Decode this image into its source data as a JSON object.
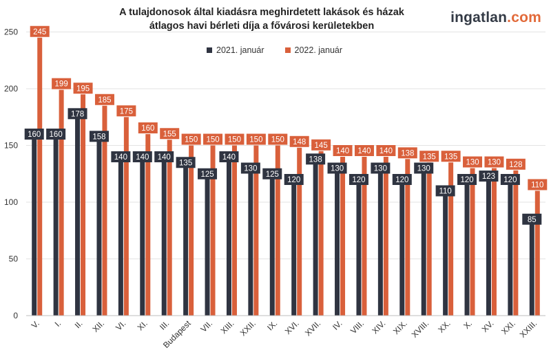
{
  "title_line1": "A tulajdonosok által kiadásra meghirdetett lakások és házak",
  "title_line2": "átlagos havi bérleti díja a fővárosi kerületekben",
  "logo": {
    "part1": "ingatlan",
    "part2": ".com"
  },
  "colors": {
    "series1": "#2f3441",
    "series2": "#d9603b",
    "grid": "#e3e3e3",
    "axis_text": "#333333"
  },
  "chart_data": {
    "type": "bar",
    "ylim": [
      0,
      260
    ],
    "yticks": [
      0,
      50,
      100,
      150,
      200,
      250
    ],
    "grid": true,
    "legend_position": "top-center",
    "categories": [
      "V.",
      "I.",
      "II.",
      "XII.",
      "VI.",
      "XI.",
      "III.",
      "Budapest",
      "VII.",
      "XIII.",
      "XXII.",
      "IX.",
      "XVI.",
      "XVII.",
      "IV.",
      "VIII.",
      "XIV.",
      "XIX.",
      "XVIII.",
      "XX.",
      "X.",
      "XV.",
      "XXI.",
      "XXIII."
    ],
    "series": [
      {
        "name": "2021. január",
        "values": [
          160,
          160,
          178,
          158,
          140,
          140,
          140,
          135,
          125,
          140,
          130,
          125,
          120,
          138,
          130,
          120,
          130,
          120,
          130,
          110,
          120,
          123,
          120,
          85
        ]
      },
      {
        "name": "2022. január",
        "values": [
          245,
          199,
          195,
          185,
          175,
          160,
          155,
          150,
          150,
          150,
          150,
          150,
          148,
          145,
          140,
          140,
          140,
          138,
          135,
          135,
          130,
          130,
          128,
          110
        ]
      }
    ]
  }
}
